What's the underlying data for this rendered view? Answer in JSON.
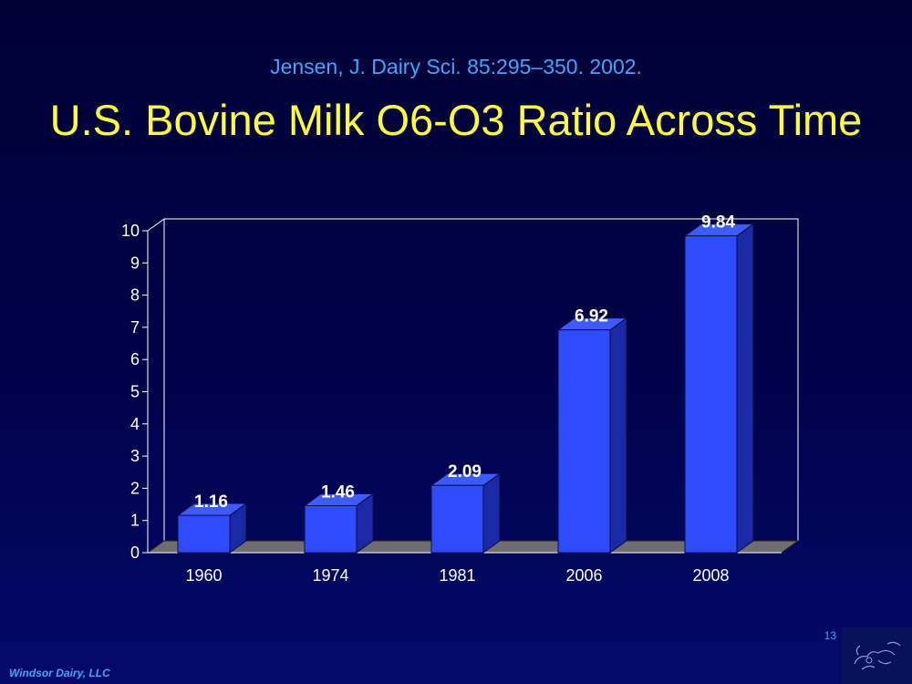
{
  "slide": {
    "citation": "Jensen, J. Dairy Sci. 85:295–350. 2002.",
    "title": "U.S. Bovine Milk O6-O3 Ratio Across Time",
    "page_number": "13",
    "footer": "Windsor Dairy, LLC",
    "logo_icon": "cow-sketch-logo"
  },
  "colors": {
    "background": "#01024a",
    "citation": "#3fa6ff",
    "title": "#ffff2e",
    "bar_front": "#2f4bff",
    "bar_side": "#1a2aa6",
    "bar_top": "#3d5bff",
    "floor": "#6e6e6e",
    "axis": "#ffffff"
  },
  "chart_data": {
    "type": "bar",
    "style": "3d",
    "categories": [
      "1960",
      "1974",
      "1981",
      "2006",
      "2008"
    ],
    "values": [
      1.16,
      1.46,
      2.09,
      6.92,
      9.84
    ],
    "data_labels": [
      "1.16",
      "1.46",
      "2.09",
      "6.92",
      "9.84"
    ],
    "ylim": [
      0,
      10
    ],
    "yticks": [
      "0",
      "1",
      "2",
      "3",
      "4",
      "5",
      "6",
      "7",
      "8",
      "9",
      "10"
    ],
    "xlabel": "",
    "ylabel": "",
    "grid": false,
    "legend": false
  }
}
